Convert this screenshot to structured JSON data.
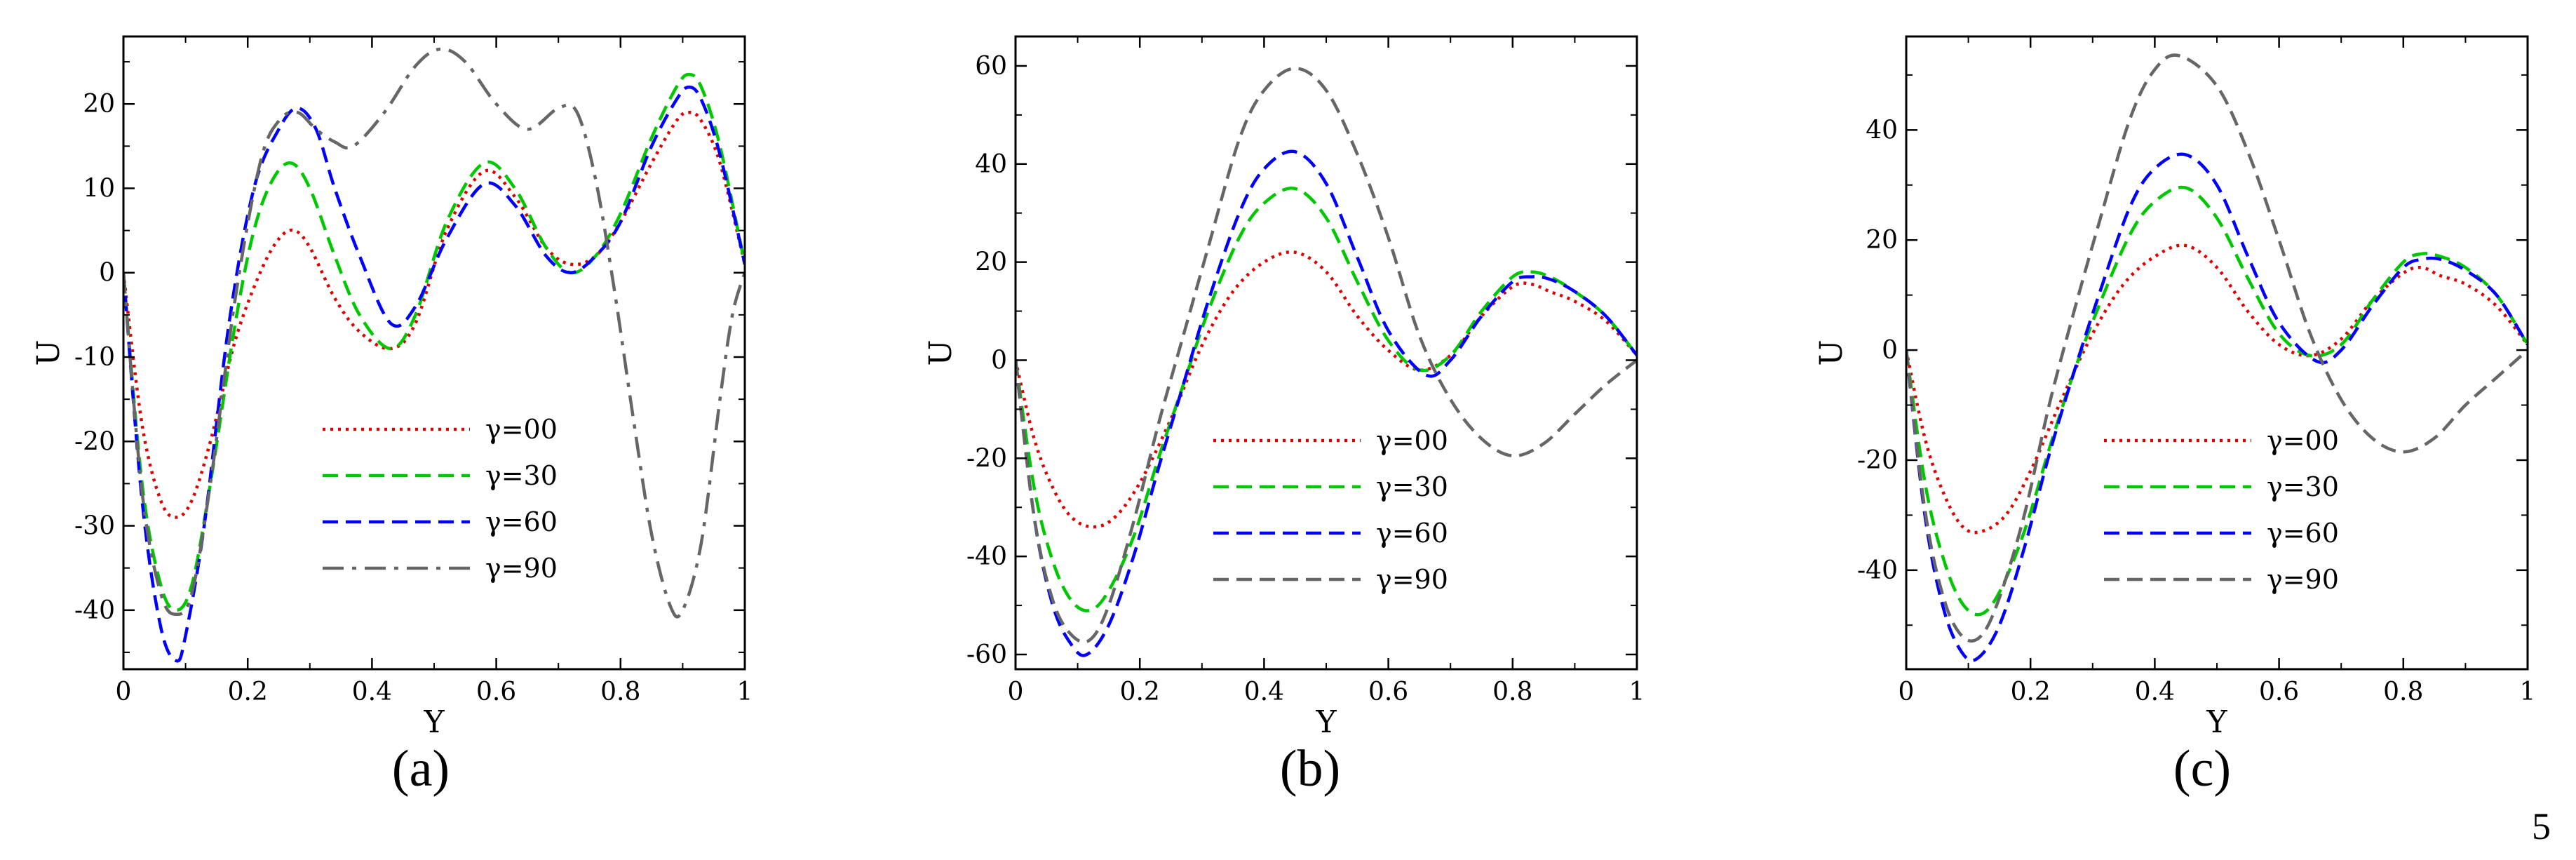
{
  "chart_data": [
    {
      "type": "line",
      "panel": "a",
      "xlabel": "Y",
      "ylabel": "U",
      "xlim": [
        0,
        1
      ],
      "ylim": [
        -47,
        28
      ],
      "xticks": [
        0,
        0.2,
        0.4,
        0.6,
        0.8,
        1
      ],
      "xtick_labels": [
        "0",
        "0.2",
        "0.4",
        "0.6",
        "0.8",
        "1"
      ],
      "yticks": [
        -40,
        -30,
        -20,
        -10,
        0,
        10,
        20
      ],
      "ytick_labels": [
        "-40",
        "-30",
        "-20",
        "-10",
        "0",
        "10",
        "20"
      ],
      "legend_position": "lower-center",
      "series": [
        {
          "name": "γ=00",
          "color": "#e00000",
          "style": "dotted",
          "x": [
            0,
            0.03,
            0.06,
            0.085,
            0.11,
            0.14,
            0.18,
            0.22,
            0.25,
            0.275,
            0.3,
            0.34,
            0.38,
            0.43,
            0.47,
            0.52,
            0.58,
            0.63,
            0.68,
            0.72,
            0.76,
            0.8,
            0.85,
            0.89,
            0.91,
            0.93,
            0.96,
            1.0
          ],
          "y": [
            0,
            -18,
            -27,
            -29,
            -27,
            -20,
            -8,
            0,
            4,
            5,
            3,
            -3,
            -7,
            -9,
            -6,
            5,
            12,
            9,
            3,
            1,
            2,
            6,
            13,
            18,
            19,
            18,
            13,
            1
          ]
        },
        {
          "name": "γ=30",
          "color": "#00c800",
          "style": "dashed",
          "x": [
            0,
            0.03,
            0.06,
            0.085,
            0.11,
            0.14,
            0.18,
            0.21,
            0.24,
            0.27,
            0.3,
            0.34,
            0.38,
            0.43,
            0.47,
            0.52,
            0.58,
            0.63,
            0.68,
            0.72,
            0.76,
            0.8,
            0.85,
            0.89,
            0.91,
            0.93,
            0.96,
            1.0
          ],
          "y": [
            0,
            -25,
            -37,
            -40,
            -37,
            -25,
            -6,
            5,
            11,
            13,
            10,
            2,
            -5,
            -9,
            -5,
            6,
            13,
            10,
            3,
            0,
            2,
            7,
            16,
            22,
            23.5,
            22,
            15,
            1
          ]
        },
        {
          "name": "γ=60",
          "color": "#0000ff",
          "style": "dashed",
          "x": [
            0,
            0.03,
            0.06,
            0.085,
            0.1,
            0.13,
            0.17,
            0.21,
            0.25,
            0.28,
            0.31,
            0.34,
            0.38,
            0.43,
            0.47,
            0.52,
            0.58,
            0.63,
            0.68,
            0.72,
            0.76,
            0.8,
            0.85,
            0.89,
            0.91,
            0.93,
            0.96,
            1.0
          ],
          "y": [
            0,
            -27,
            -42,
            -46,
            -43,
            -30,
            -6,
            10,
            17,
            19.5,
            17,
            10,
            2,
            -6,
            -4,
            4,
            10.5,
            8,
            2,
            0,
            2,
            6,
            15,
            20.5,
            22,
            20.5,
            14,
            1
          ]
        },
        {
          "name": "γ=90",
          "color": "#666666",
          "style": "dashdot",
          "x": [
            0,
            0.03,
            0.06,
            0.085,
            0.11,
            0.14,
            0.18,
            0.22,
            0.25,
            0.28,
            0.31,
            0.34,
            0.37,
            0.42,
            0.47,
            0.51,
            0.55,
            0.6,
            0.65,
            0.7,
            0.73,
            0.76,
            0.79,
            0.82,
            0.85,
            0.88,
            0.9,
            0.93,
            0.96,
            0.98,
            1.0
          ],
          "y": [
            0,
            -26,
            -38,
            -40.5,
            -38,
            -25,
            -3,
            13,
            18,
            19,
            17,
            15.5,
            15,
            19,
            24.5,
            26.5,
            25,
            20,
            17,
            19.5,
            19,
            11,
            -2,
            -17,
            -31,
            -39.5,
            -40,
            -32,
            -15,
            -5,
            0
          ]
        }
      ]
    },
    {
      "type": "line",
      "panel": "b",
      "xlabel": "Y",
      "ylabel": "U",
      "xlim": [
        0,
        1
      ],
      "ylim": [
        -63,
        66
      ],
      "xticks": [
        0,
        0.2,
        0.4,
        0.6,
        0.8,
        1
      ],
      "xtick_labels": [
        "0",
        "0.2",
        "0.4",
        "0.6",
        "0.8",
        "1"
      ],
      "yticks": [
        -60,
        -40,
        -20,
        0,
        20,
        40,
        60
      ],
      "ytick_labels": [
        "-60",
        "-40",
        "-20",
        "0",
        "20",
        "40",
        "60"
      ],
      "legend_position": "lower-center",
      "series": [
        {
          "name": "γ=00",
          "color": "#e00000",
          "style": "dotted",
          "x": [
            0,
            0.03,
            0.06,
            0.09,
            0.125,
            0.16,
            0.2,
            0.25,
            0.3,
            0.35,
            0.4,
            0.45,
            0.5,
            0.55,
            0.6,
            0.65,
            0.7,
            0.75,
            0.8,
            0.83,
            0.86,
            0.9,
            0.95,
            1.0
          ],
          "y": [
            0,
            -16,
            -26,
            -32,
            -34,
            -32,
            -25,
            -12,
            3,
            14,
            20,
            22,
            18,
            9,
            2,
            -2,
            1,
            9,
            15,
            15.5,
            14,
            12,
            8,
            1
          ]
        },
        {
          "name": "γ=30",
          "color": "#00c800",
          "style": "dashed",
          "x": [
            0,
            0.03,
            0.06,
            0.09,
            0.12,
            0.15,
            0.19,
            0.23,
            0.27,
            0.31,
            0.36,
            0.4,
            0.45,
            0.5,
            0.55,
            0.6,
            0.65,
            0.7,
            0.75,
            0.8,
            0.83,
            0.86,
            0.9,
            0.95,
            1.0
          ],
          "y": [
            0,
            -26,
            -41,
            -49,
            -51,
            -47,
            -36,
            -20,
            -5,
            10,
            25,
            32,
            35,
            29,
            16,
            4,
            -2,
            1,
            10,
            17,
            18,
            17,
            14,
            9,
            1
          ]
        },
        {
          "name": "γ=60",
          "color": "#0000ff",
          "style": "dashed",
          "x": [
            0,
            0.03,
            0.06,
            0.09,
            0.115,
            0.15,
            0.19,
            0.23,
            0.27,
            0.31,
            0.36,
            0.4,
            0.45,
            0.5,
            0.55,
            0.6,
            0.66,
            0.7,
            0.75,
            0.8,
            0.83,
            0.86,
            0.9,
            0.95,
            1.0
          ],
          "y": [
            0,
            -32,
            -50,
            -58,
            -60,
            -54,
            -40,
            -22,
            -5,
            12,
            30,
            39,
            42.5,
            36,
            21,
            6,
            -3,
            0,
            9,
            16,
            17,
            16.5,
            14,
            9,
            1
          ]
        },
        {
          "name": "γ=90",
          "color": "#666666",
          "style": "dashed",
          "x": [
            0,
            0.03,
            0.06,
            0.09,
            0.12,
            0.15,
            0.19,
            0.23,
            0.27,
            0.31,
            0.36,
            0.4,
            0.45,
            0.5,
            0.55,
            0.6,
            0.65,
            0.7,
            0.75,
            0.8,
            0.85,
            0.9,
            0.95,
            1.0
          ],
          "y": [
            0,
            -32,
            -49,
            -56,
            -57,
            -50,
            -33,
            -13,
            5,
            23,
            45,
            55,
            59.5,
            55,
            42,
            25,
            5,
            -8,
            -16,
            -19.5,
            -17,
            -11,
            -5,
            0
          ]
        }
      ]
    },
    {
      "type": "line",
      "panel": "c",
      "xlabel": "Y",
      "ylabel": "U",
      "xlim": [
        0,
        1
      ],
      "ylim": [
        -58,
        57
      ],
      "xticks": [
        0,
        0.2,
        0.4,
        0.6,
        0.8,
        1
      ],
      "xtick_labels": [
        "0",
        "0.2",
        "0.4",
        "0.6",
        "0.8",
        "1"
      ],
      "yticks": [
        -40,
        -20,
        0,
        20,
        40
      ],
      "ytick_labels": [
        "-40",
        "-20",
        "0",
        "20",
        "40"
      ],
      "legend_position": "lower-center",
      "series": [
        {
          "name": "γ=00",
          "color": "#e00000",
          "style": "dotted",
          "x": [
            0,
            0.03,
            0.06,
            0.09,
            0.12,
            0.16,
            0.2,
            0.25,
            0.3,
            0.35,
            0.4,
            0.45,
            0.5,
            0.55,
            0.6,
            0.65,
            0.7,
            0.75,
            0.8,
            0.83,
            0.86,
            0.9,
            0.95,
            1.0
          ],
          "y": [
            0,
            -16,
            -26,
            -32,
            -33,
            -30,
            -22,
            -9,
            3,
            12,
            17,
            19,
            15,
            7,
            1,
            -1,
            2,
            9,
            14,
            15,
            13.5,
            12,
            8,
            1
          ]
        },
        {
          "name": "γ=30",
          "color": "#00c800",
          "style": "dashed",
          "x": [
            0,
            0.03,
            0.06,
            0.09,
            0.12,
            0.15,
            0.19,
            0.23,
            0.27,
            0.31,
            0.36,
            0.4,
            0.45,
            0.5,
            0.55,
            0.6,
            0.65,
            0.7,
            0.75,
            0.8,
            0.83,
            0.86,
            0.9,
            0.95,
            1.0
          ],
          "y": [
            0,
            -24,
            -38,
            -46,
            -48,
            -44,
            -33,
            -18,
            -4,
            8,
            21,
            27,
            29.5,
            24,
            13,
            3,
            -1,
            1,
            9,
            16,
            17.5,
            17,
            15,
            10,
            1
          ]
        },
        {
          "name": "γ=60",
          "color": "#0000ff",
          "style": "dashed",
          "x": [
            0,
            0.03,
            0.06,
            0.09,
            0.115,
            0.15,
            0.19,
            0.23,
            0.27,
            0.31,
            0.36,
            0.4,
            0.45,
            0.5,
            0.55,
            0.6,
            0.66,
            0.7,
            0.75,
            0.8,
            0.83,
            0.86,
            0.9,
            0.95,
            1.0
          ],
          "y": [
            0,
            -30,
            -47,
            -55,
            -56,
            -50,
            -36,
            -19,
            -4,
            10,
            26,
            33,
            35.5,
            30,
            17,
            5,
            -2,
            0,
            8,
            15,
            16.5,
            16.5,
            14.5,
            10,
            1
          ]
        },
        {
          "name": "γ=90",
          "color": "#666666",
          "style": "dashed",
          "x": [
            0,
            0.03,
            0.06,
            0.09,
            0.12,
            0.15,
            0.19,
            0.23,
            0.27,
            0.31,
            0.36,
            0.4,
            0.44,
            0.5,
            0.55,
            0.6,
            0.65,
            0.7,
            0.75,
            0.8,
            0.85,
            0.9,
            0.95,
            1.0
          ],
          "y": [
            0,
            -29,
            -45,
            -52,
            -52,
            -45,
            -30,
            -10,
            7,
            23,
            42,
            51,
            53.5,
            48,
            36,
            20,
            3,
            -9,
            -16,
            -18.5,
            -16,
            -10,
            -5,
            0
          ]
        }
      ]
    }
  ],
  "panel_labels": [
    "(a)",
    "(b)",
    "(c)"
  ],
  "caption_fragment": "5"
}
